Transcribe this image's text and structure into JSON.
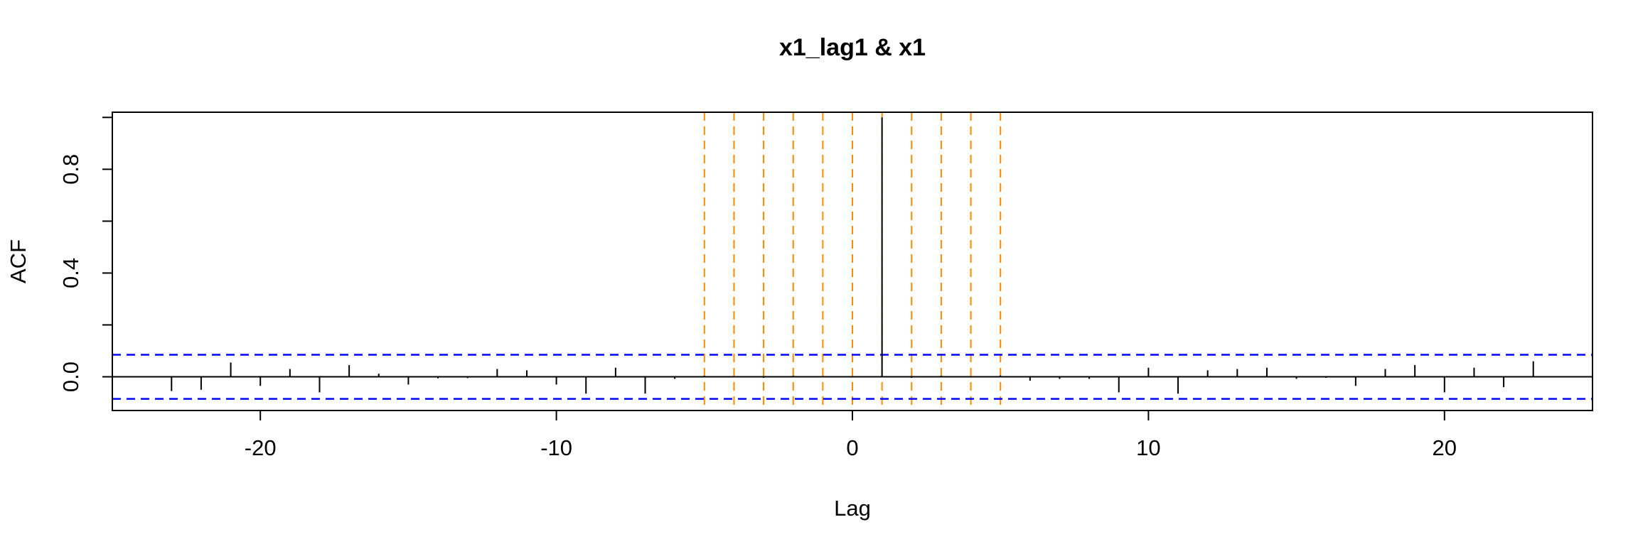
{
  "chart_data": {
    "type": "bar",
    "title": "x1_lag1 & x1",
    "xlabel": "Lag",
    "ylabel": "ACF",
    "xlim": [
      -25,
      25
    ],
    "ylim": [
      -0.13,
      1.02
    ],
    "x_ticks": [
      -20,
      -10,
      0,
      10,
      20
    ],
    "y_ticks": [
      0.0,
      0.4,
      0.8
    ],
    "y_tick_labels": [
      "0.0",
      "0.4",
      "0.8"
    ],
    "x_tick_labels": [
      "-20",
      "-10",
      "0",
      "10",
      "20"
    ],
    "confidence_bound": 0.085,
    "highlight_lags": [
      -5,
      -4,
      -3,
      -2,
      -1,
      0,
      1,
      2,
      3,
      4,
      5
    ],
    "series": [
      {
        "x": [
          -23,
          -22,
          -21,
          -20,
          -19,
          -18,
          -17,
          -16,
          -15,
          -14,
          -13,
          -12,
          -11,
          -10,
          -9,
          -8,
          -7,
          -6,
          -5,
          -4,
          -3,
          -2,
          -1,
          0,
          1,
          2,
          3,
          4,
          5,
          6,
          7,
          8,
          9,
          10,
          11,
          12,
          13,
          14,
          15,
          16,
          17,
          18,
          19,
          20,
          21,
          22,
          23
        ],
        "values": [
          -0.055,
          -0.05,
          0.055,
          -0.035,
          0.03,
          -0.06,
          0.045,
          0.012,
          -0.03,
          -0.006,
          -0.005,
          0.03,
          0.025,
          -0.03,
          -0.065,
          0.035,
          -0.065,
          -0.008,
          0.004,
          0.003,
          -0.004,
          0.004,
          0.003,
          -0.003,
          1.0,
          -0.004,
          0.004,
          -0.003,
          0.005,
          -0.015,
          -0.008,
          -0.008,
          -0.06,
          0.035,
          -0.065,
          0.025,
          0.03,
          0.035,
          -0.008,
          -0.004,
          -0.035,
          0.03,
          0.045,
          -0.06,
          0.035,
          -0.04,
          0.06
        ]
      }
    ],
    "colors": {
      "frame": "#000000",
      "bars": "#000000",
      "confidence": "#0000ff",
      "highlight": "#ff8c00"
    }
  }
}
